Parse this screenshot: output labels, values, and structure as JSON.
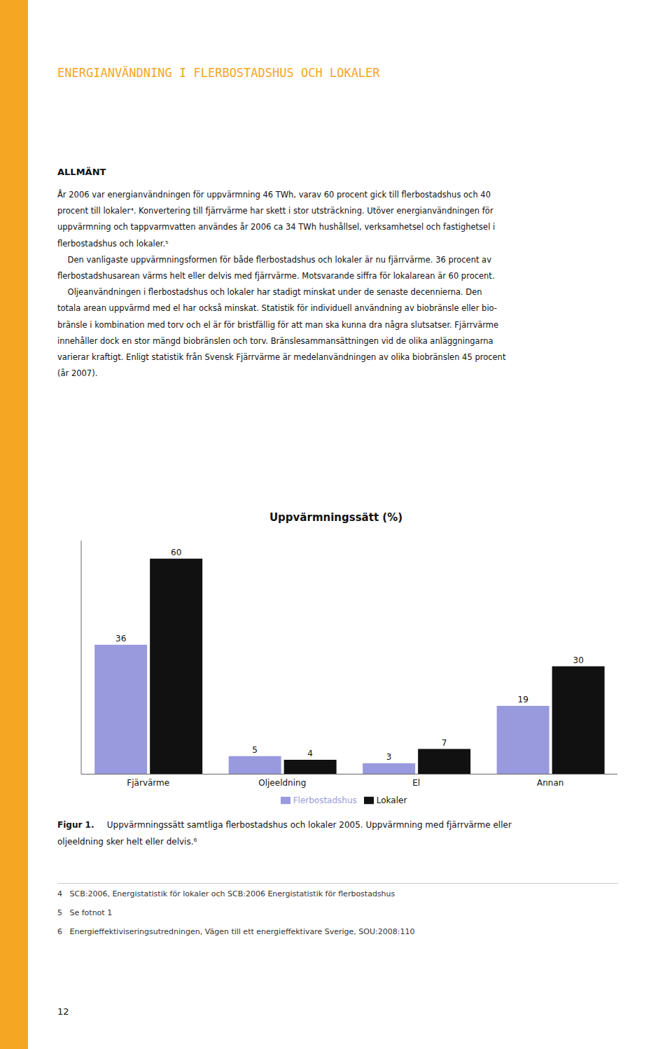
{
  "chart_data": {
    "type": "bar",
    "title": "Uppvärmningssätt (%)",
    "categories": [
      "Fjärvärme",
      "Oljeeldning",
      "El",
      "Annan"
    ],
    "series": [
      {
        "name": "Flerbostadshus",
        "color": "#9999dd",
        "values": [
          36,
          5,
          3,
          19
        ]
      },
      {
        "name": "Lokaler",
        "color": "#111111",
        "values": [
          60,
          4,
          7,
          30
        ]
      }
    ],
    "ylim": [
      0,
      65
    ],
    "grid": false,
    "legend": "bottom",
    "data_labels": true,
    "tick_labels": "x",
    "annotations": [
      "ENERGIANVÄNDNING I FLERBOSTADSHUS OCH LOKALER",
      "ALLMÄNT",
      "År 2006 var energianvändningen för uppvärmning 46 TWh, varav 60 procent gick till flerbostadshus och 40",
      "procent till lokaler⁴. Konvertering till fjärrvärme har skett i stor utsträckning. Utöver energianvändningen för",
      "uppvärmning och tappvarmvatten användes år 2006 ca 34 TWh hushållsel, verksamhetsel och fastighetsel i",
      "flerbostadshus och lokaler.⁵",
      "    Den vanligaste uppvärmningsformen för både flerbostadshus och lokaler är nu fjärrvärme. 36 procent av",
      "flerbostadshusarean värms helt eller delvis med fjärrvärme. Motsvarande siffra för lokalarean är 60 procent.",
      "    Oljeanvändningen i flerbostadshus och lokaler har stadigt minskat under de senaste decennierna. Den",
      "totala arean uppvärmd med el har också minskat. Statistik för individuell användning av biobränsle eller bio-",
      "bränsle i kombination med torv och el är för bristfällig för att man ska kunna dra några slutsatser. Fjärrvärme",
      "innehåller dock en stor mängd biobränslen och torv. Bränslesammansättningen vid de olika anläggningarna",
      "varierar kraftigt. Enligt statistik från Svensk Fjärrvärme är medelanvändningen av olika biobränslen 45 procent",
      "(år 2007).",
      "Figur 1.",
      " Uppvärmningssätt samtliga flerbostadshus och lokaler 2005. Uppvärmning med fjärrvärme eller",
      "oljeeldning sker helt eller delvis.⁶",
      "4   SCB:2006, Energistatistik för lokaler och SCB:2006 Energistatistik för flerbostadshus",
      "5   Se fotnot 1",
      "6   Energieffektiviseringsutredningen, Vägen till ett energieffektivare Sverige, SOU:2008:110",
      "12"
    ]
  }
}
